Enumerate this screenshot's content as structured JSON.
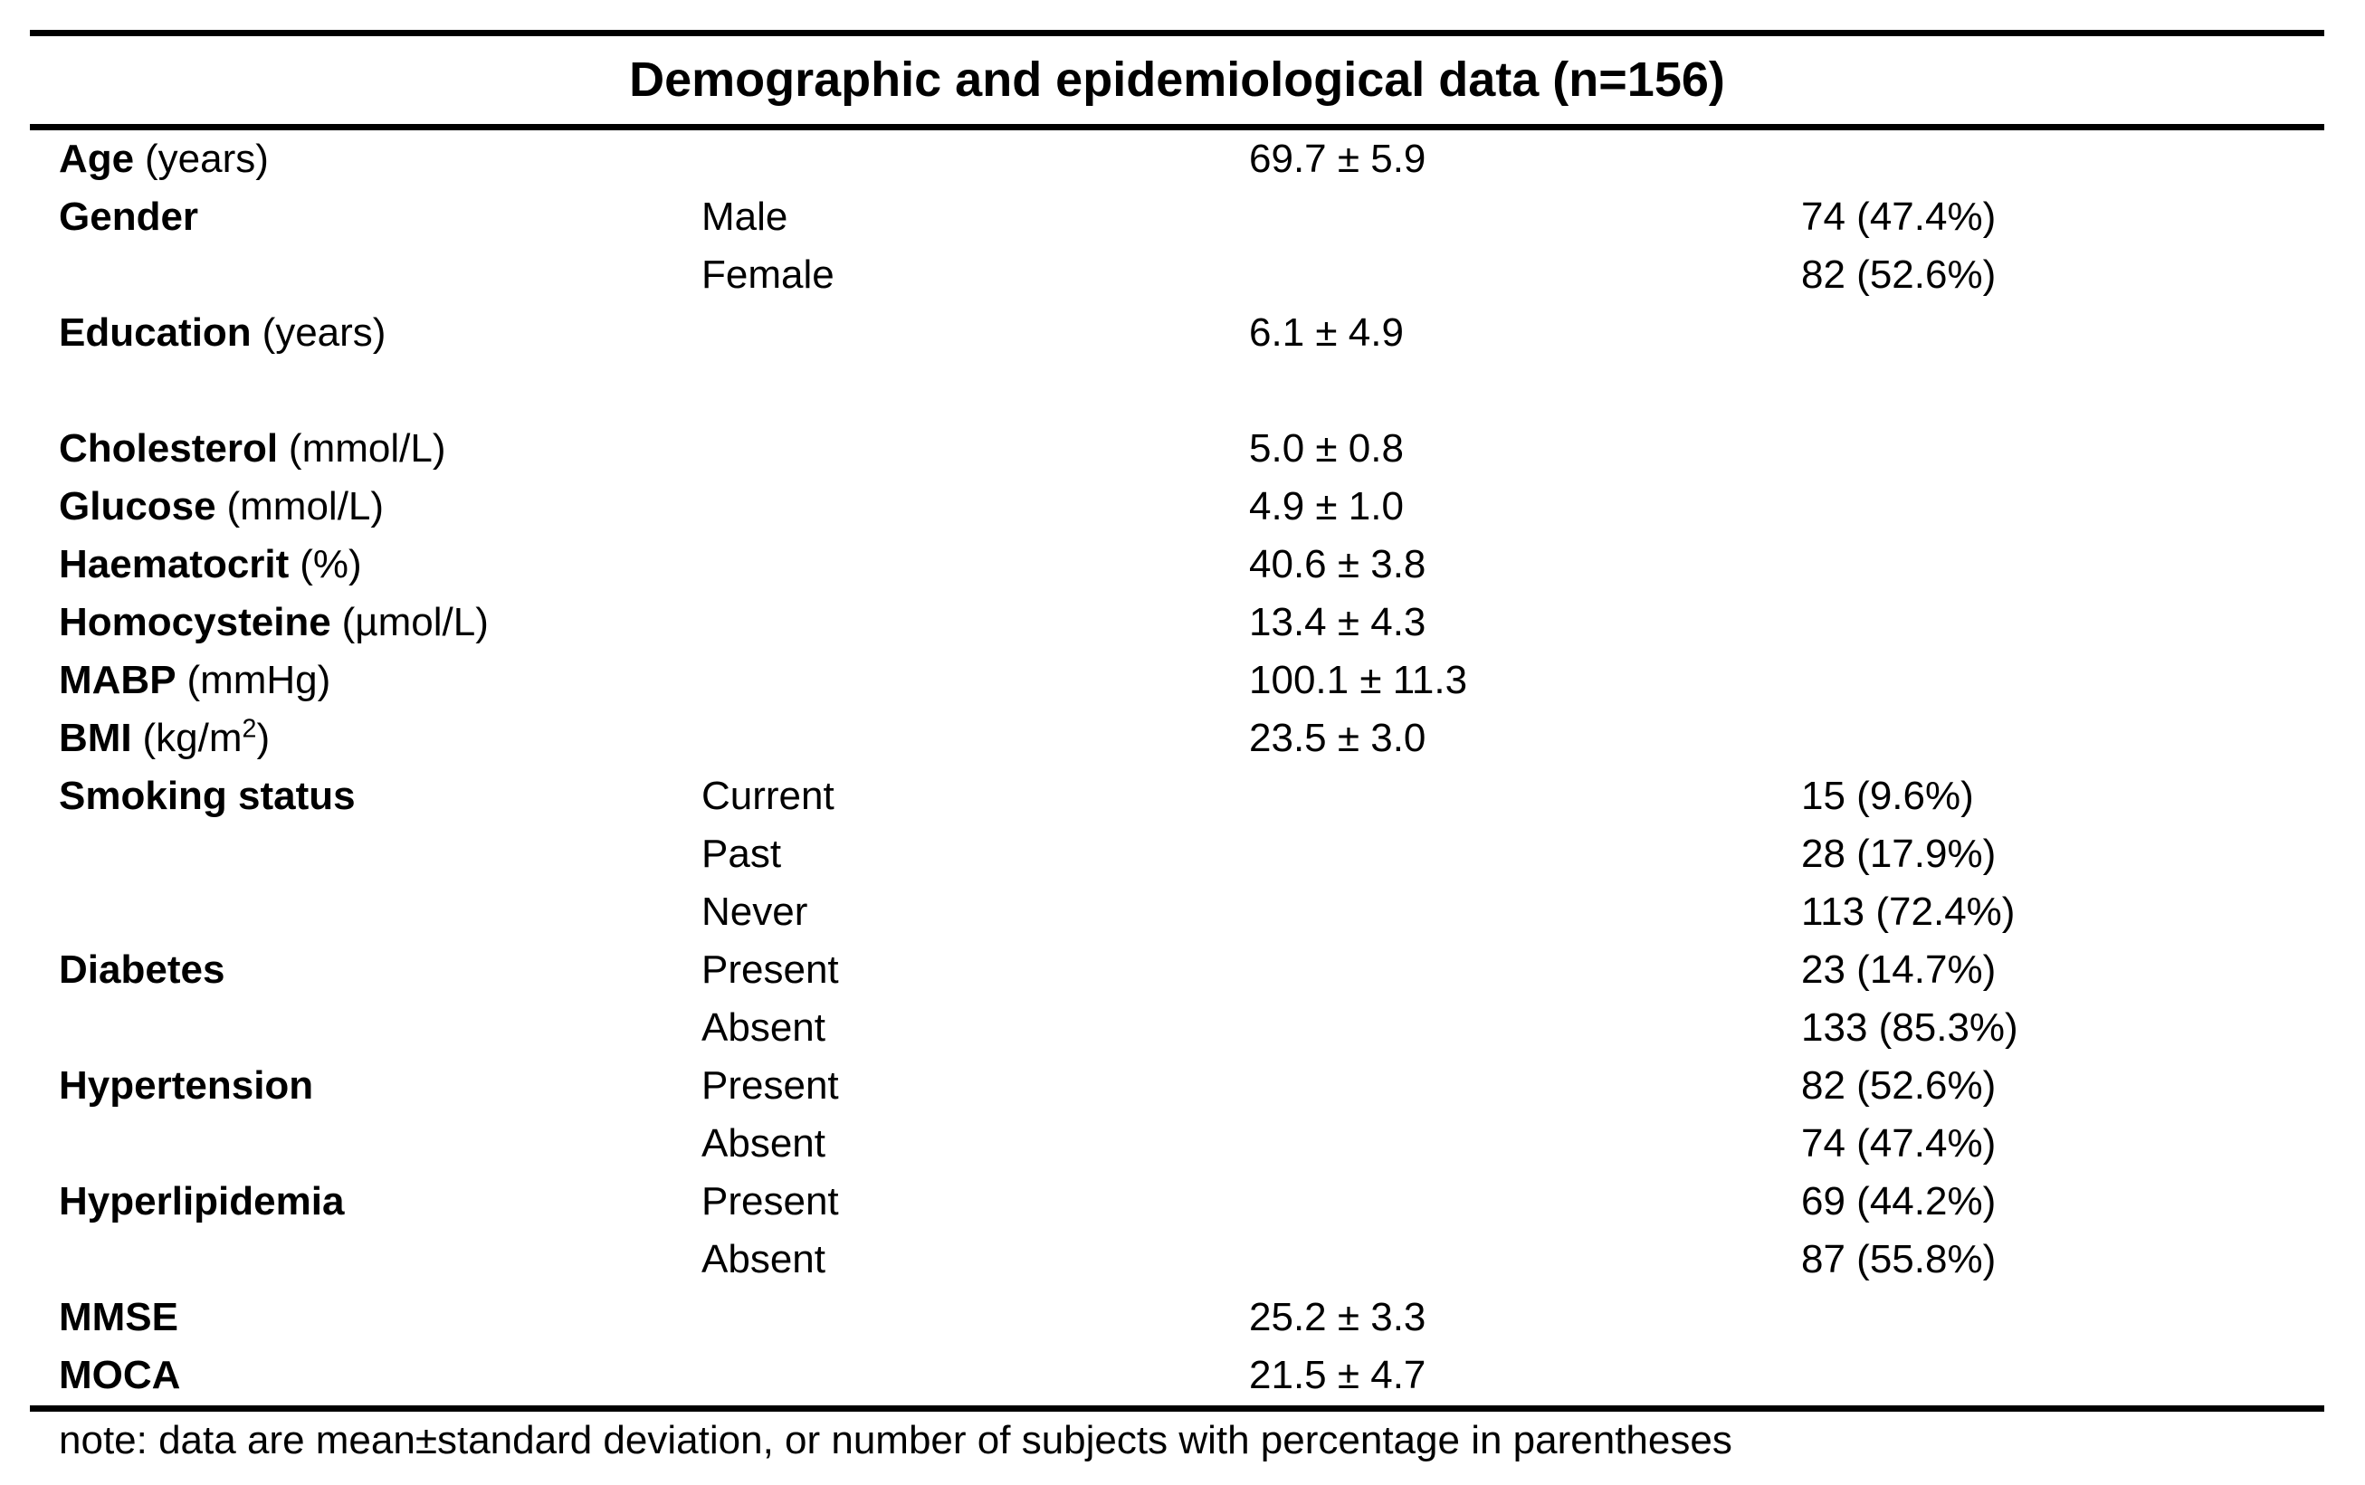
{
  "table": {
    "title": "Demographic and epidemiological data (n=156)",
    "note": "note: data are mean±standard deviation, or number of subjects with percentage in parentheses",
    "colors": {
      "text": "#000000",
      "background": "#ffffff",
      "rule": "#000000"
    },
    "columns": [
      "variable",
      "category",
      "mean_sd",
      "n_percent"
    ],
    "rows": [
      {
        "label": "Age",
        "unit": "(years)",
        "category": "",
        "mean_sd": "69.7 ± 5.9",
        "n_percent": ""
      },
      {
        "label": "Gender",
        "unit": "",
        "category": "Male",
        "mean_sd": "",
        "n_percent": "74 (47.4%)"
      },
      {
        "label": "",
        "unit": "",
        "category": "Female",
        "mean_sd": "",
        "n_percent": "82 (52.6%)"
      },
      {
        "label": "Education",
        "unit": "(years)",
        "category": "",
        "mean_sd": "6.1 ± 4.9",
        "n_percent": ""
      },
      {
        "label": "",
        "unit": "",
        "category": "",
        "mean_sd": "",
        "n_percent": ""
      },
      {
        "label": "Cholesterol",
        "unit": "(mmol/L)",
        "category": "",
        "mean_sd": "5.0 ± 0.8",
        "n_percent": ""
      },
      {
        "label": "Glucose",
        "unit": "(mmol/L)",
        "category": "",
        "mean_sd": "4.9 ± 1.0",
        "n_percent": ""
      },
      {
        "label": "Haematocrit",
        "unit": "(%)",
        "category": "",
        "mean_sd": "40.6 ± 3.8",
        "n_percent": ""
      },
      {
        "label": "Homocysteine",
        "unit": "(µmol/L)",
        "category": "",
        "mean_sd": "13.4 ± 4.3",
        "n_percent": ""
      },
      {
        "label": "MABP",
        "unit": "(mmHg)",
        "category": "",
        "mean_sd": "100.1 ± 11.3",
        "n_percent": ""
      },
      {
        "label": "BMI",
        "unit": "(kg/m",
        "unit_sup": "2",
        "unit_close": ")",
        "category": "",
        "mean_sd": "23.5 ± 3.0",
        "n_percent": ""
      },
      {
        "label": "Smoking status",
        "unit": "",
        "category": "Current",
        "mean_sd": "",
        "n_percent": "15 (9.6%)"
      },
      {
        "label": "",
        "unit": "",
        "category": "Past",
        "mean_sd": "",
        "n_percent": "28 (17.9%)"
      },
      {
        "label": "",
        "unit": "",
        "category": "Never",
        "mean_sd": "",
        "n_percent": "113 (72.4%)"
      },
      {
        "label": "Diabetes",
        "unit": "",
        "category": "Present",
        "mean_sd": "",
        "n_percent": "23 (14.7%)"
      },
      {
        "label": "",
        "unit": "",
        "category": "Absent",
        "mean_sd": "",
        "n_percent": "133 (85.3%)"
      },
      {
        "label": "Hypertension",
        "unit": "",
        "category": "Present",
        "mean_sd": "",
        "n_percent": "82 (52.6%)"
      },
      {
        "label": "",
        "unit": "",
        "category": "Absent",
        "mean_sd": "",
        "n_percent": "74 (47.4%)"
      },
      {
        "label": "Hyperlipidemia",
        "unit": "",
        "category": "Present",
        "mean_sd": "",
        "n_percent": "69 (44.2%)"
      },
      {
        "label": "",
        "unit": "",
        "category": "Absent",
        "mean_sd": "",
        "n_percent": "87 (55.8%)"
      },
      {
        "label": "MMSE",
        "unit": "",
        "category": "",
        "mean_sd": "25.2 ± 3.3",
        "n_percent": ""
      },
      {
        "label": "MOCA",
        "unit": "",
        "category": "",
        "mean_sd": "21.5 ± 4.7",
        "n_percent": ""
      }
    ]
  }
}
